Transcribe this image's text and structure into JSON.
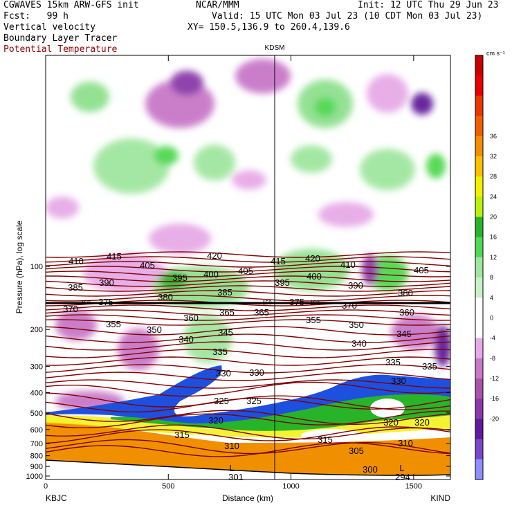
{
  "header": {
    "model": "CGWAVES 15km ARW-GFS init",
    "org": "NCAR/MMM",
    "init": "Init: 12 UTC Thu 29 Jun 23",
    "fcst": "Fcst:   99 h",
    "valid": "Valid: 15 UTC Mon 03 Jul 23 (10 CDT Mon 03 Jul 23)",
    "field1": "Vertical velocity",
    "field2": "Boundary Layer Tracer",
    "field3": "Potential Temperature",
    "xy": "XY= 150.5,136.9 to 260.4,139.6"
  },
  "colors": {
    "theta": "#800000",
    "tropopause": "#000000"
  },
  "chart_data": {
    "type": "heatmap",
    "title": "",
    "xlabel": "Distance (km)",
    "ylabel": "Pressure (hPa), log scale",
    "xlim": [
      0,
      1650
    ],
    "x_ticks": [
      0,
      500,
      1000,
      1500
    ],
    "y_ticks": [
      100,
      200,
      300,
      400,
      500,
      600,
      700,
      800,
      900,
      1000
    ],
    "y_scale": "log",
    "marker_label": "KDSM",
    "marker_x_km": 930,
    "left_station": "KBJC",
    "right_station": "KIND",
    "colorbar": {
      "units": "cm s⁻¹",
      "levels": [
        -20,
        -16,
        -12,
        -8,
        -4,
        0,
        4,
        8,
        12,
        16,
        20,
        24,
        28,
        32,
        36
      ],
      "colors": [
        "#8f8fff",
        "#7848c8",
        "#601a9a",
        "#8a3aa8",
        "#a852a8",
        "#c878c8",
        "#e6aae6",
        "#ffffff",
        "#ffffff",
        "#c8f0c8",
        "#a0e6a0",
        "#50d850",
        "#28b428",
        "#b8f010",
        "#f0f000",
        "#f8c000",
        "#f09000",
        "#f06000",
        "#e83800",
        "#e80000",
        "#c80000"
      ]
    },
    "theta_labels": [
      {
        "t": "410",
        "x": 110,
        "y": 378
      },
      {
        "t": "415",
        "x": 165,
        "y": 371
      },
      {
        "t": "405",
        "x": 213,
        "y": 384
      },
      {
        "t": "420",
        "x": 310,
        "y": 370
      },
      {
        "t": "400",
        "x": 305,
        "y": 397
      },
      {
        "t": "405",
        "x": 355,
        "y": 392
      },
      {
        "t": "415",
        "x": 402,
        "y": 378
      },
      {
        "t": "420",
        "x": 452,
        "y": 374
      },
      {
        "t": "400",
        "x": 454,
        "y": 400
      },
      {
        "t": "410",
        "x": 503,
        "y": 383
      },
      {
        "t": "405",
        "x": 609,
        "y": 391
      },
      {
        "t": "385",
        "x": 109,
        "y": 416
      },
      {
        "t": "390",
        "x": 154,
        "y": 409
      },
      {
        "t": "395",
        "x": 260,
        "y": 402
      },
      {
        "t": "380",
        "x": 239,
        "y": 430
      },
      {
        "t": "385",
        "x": 325,
        "y": 423
      },
      {
        "t": "395",
        "x": 408,
        "y": 409
      },
      {
        "t": "390",
        "x": 514,
        "y": 413
      },
      {
        "t": "380",
        "x": 586,
        "y": 424
      },
      {
        "t": "370",
        "x": 102,
        "y": 447
      },
      {
        "t": "375",
        "x": 153,
        "y": 437
      },
      {
        "t": "365",
        "x": 328,
        "y": 452
      },
      {
        "t": "365",
        "x": 378,
        "y": 452
      },
      {
        "t": "375",
        "x": 429,
        "y": 437
      },
      {
        "t": "370",
        "x": 505,
        "y": 442
      },
      {
        "t": "360",
        "x": 588,
        "y": 452
      },
      {
        "t": "360",
        "x": 276,
        "y": 460
      },
      {
        "t": "355",
        "x": 164,
        "y": 469
      },
      {
        "t": "355",
        "x": 453,
        "y": 463
      },
      {
        "t": "350",
        "x": 223,
        "y": 477
      },
      {
        "t": "350",
        "x": 515,
        "y": 470
      },
      {
        "t": "345",
        "x": 326,
        "y": 481
      },
      {
        "t": "345",
        "x": 584,
        "y": 483
      },
      {
        "t": "340",
        "x": 269,
        "y": 491
      },
      {
        "t": "340",
        "x": 519,
        "y": 497
      },
      {
        "t": "335",
        "x": 318,
        "y": 509
      },
      {
        "t": "335",
        "x": 568,
        "y": 524
      },
      {
        "t": "335",
        "x": 621,
        "y": 530
      },
      {
        "t": "330",
        "x": 323,
        "y": 540
      },
      {
        "t": "330",
        "x": 371,
        "y": 539
      },
      {
        "t": "330",
        "x": 576,
        "y": 551
      },
      {
        "t": "325",
        "x": 320,
        "y": 580
      },
      {
        "t": "325",
        "x": 367,
        "y": 580
      },
      {
        "t": "320",
        "x": 312,
        "y": 608
      },
      {
        "t": "320",
        "x": 565,
        "y": 611
      },
      {
        "t": "320",
        "x": 610,
        "y": 611
      },
      {
        "t": "315",
        "x": 263,
        "y": 629
      },
      {
        "t": "315",
        "x": 470,
        "y": 636
      },
      {
        "t": "310",
        "x": 335,
        "y": 645
      },
      {
        "t": "310",
        "x": 586,
        "y": 641
      },
      {
        "t": "305",
        "x": 515,
        "y": 652
      },
      {
        "t": "300",
        "x": 535,
        "y": 679
      },
      {
        "t": "301",
        "x": 341,
        "y": 690
      },
      {
        "t": "294",
        "x": 582,
        "y": 690
      },
      {
        "t": "L",
        "x": 335,
        "y": 677
      },
      {
        "t": "L",
        "x": 581,
        "y": 677
      },
      {
        "t": "150",
        "x": 124,
        "y": 438
      },
      {
        "t": "150",
        "x": 386,
        "y": 438
      },
      {
        "t": "150",
        "x": 455,
        "y": 438
      }
    ]
  }
}
